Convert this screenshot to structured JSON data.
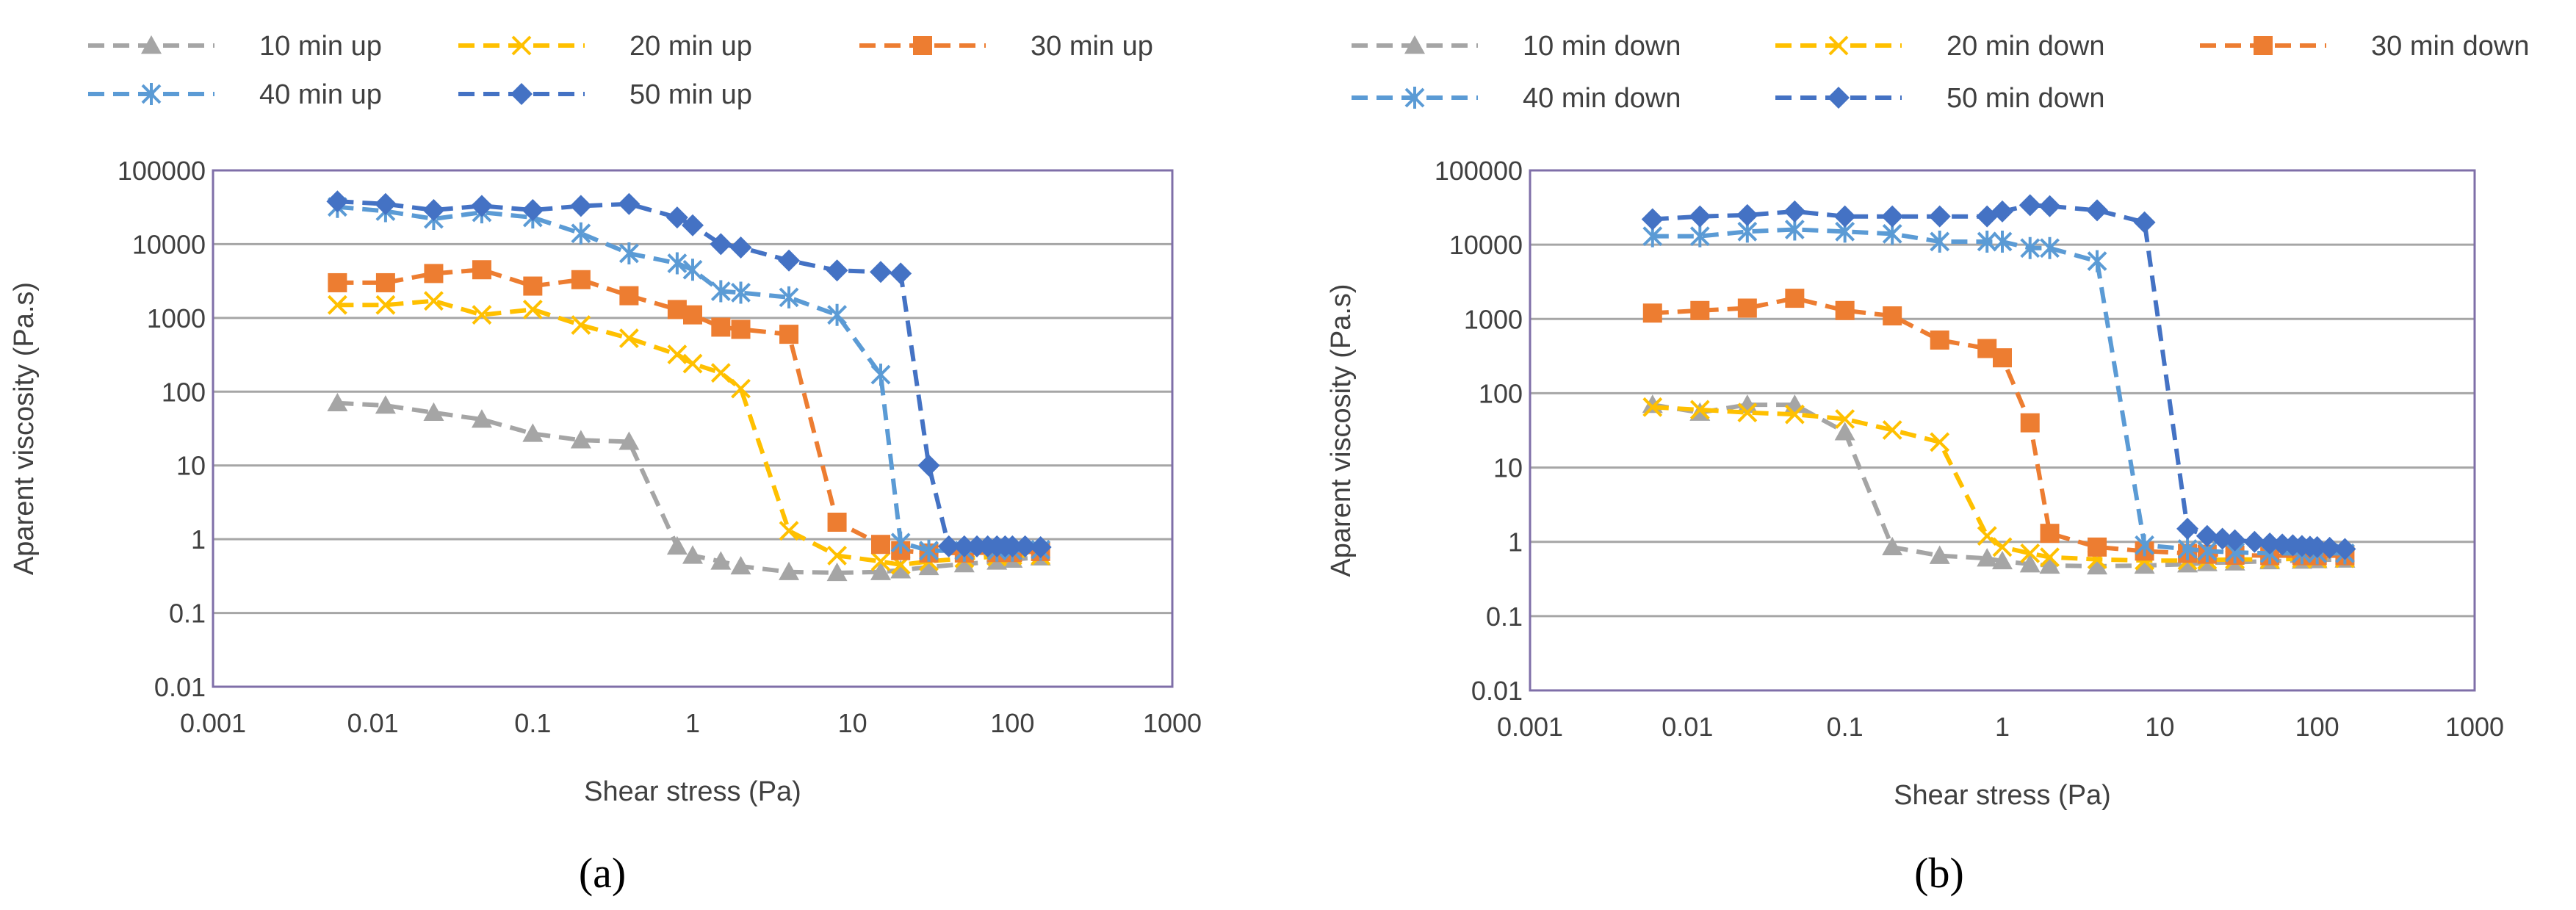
{
  "colors": {
    "gray": "#a5a5a5",
    "yellow": "#ffc000",
    "orange": "#ed7d31",
    "lightblue": "#5b9bd5",
    "blue": "#4472c4",
    "grid": "#a6a6a6",
    "frame": "#7f6fa8"
  },
  "chart_data": [
    {
      "type": "line",
      "panel_label": "(a)",
      "panel_letter": "a",
      "xlabel": "Shear stress (Pa)",
      "ylabel": "Aparent viscosity (Pa.s)",
      "xscale": "log",
      "yscale": "log",
      "xlim": [
        0.001,
        1000
      ],
      "ylim": [
        0.01,
        100000
      ],
      "xticks": [
        "0.001",
        "0.01",
        "0.1",
        "1",
        "10",
        "100",
        "1000"
      ],
      "yticks": [
        "0.01",
        "0.1",
        "1",
        "10",
        "100",
        "1000",
        "10000",
        "100000"
      ],
      "legend": "top",
      "series": [
        {
          "name": "10 min up",
          "color": "gray",
          "marker": "triangle",
          "x": [
            0.006,
            0.012,
            0.024,
            0.048,
            0.1,
            0.2,
            0.4,
            0.8,
            1.0,
            1.5,
            2.0,
            4.0,
            8.0,
            15,
            20,
            30,
            50,
            80,
            100,
            150
          ],
          "y": [
            70,
            65,
            52,
            42,
            27,
            22,
            21,
            0.8,
            0.6,
            0.5,
            0.43,
            0.36,
            0.35,
            0.36,
            0.38,
            0.42,
            0.46,
            0.5,
            0.53,
            0.57
          ]
        },
        {
          "name": "20 min up",
          "color": "yellow",
          "marker": "x",
          "x": [
            0.006,
            0.012,
            0.024,
            0.048,
            0.1,
            0.2,
            0.4,
            0.8,
            1.0,
            1.5,
            2.0,
            4.0,
            8.0,
            15,
            20,
            30,
            50,
            80,
            100,
            150
          ],
          "y": [
            1500,
            1500,
            1700,
            1100,
            1300,
            800,
            530,
            320,
            240,
            180,
            110,
            1.3,
            0.6,
            0.5,
            0.45,
            0.5,
            0.55,
            0.58,
            0.6,
            0.6
          ]
        },
        {
          "name": "30 min up",
          "color": "orange",
          "marker": "square",
          "x": [
            0.006,
            0.012,
            0.024,
            0.048,
            0.1,
            0.2,
            0.4,
            0.8,
            1.0,
            1.5,
            2.0,
            4.0,
            8.0,
            15,
            20,
            30,
            50,
            80,
            100,
            150
          ],
          "y": [
            3000,
            3000,
            4000,
            4500,
            2700,
            3300,
            2000,
            1300,
            1100,
            750,
            700,
            600,
            1.7,
            0.85,
            0.7,
            0.65,
            0.65,
            0.66,
            0.66,
            0.68
          ]
        },
        {
          "name": "40 min up",
          "color": "lightblue",
          "marker": "asterisk",
          "x": [
            0.006,
            0.012,
            0.024,
            0.048,
            0.1,
            0.2,
            0.4,
            0.8,
            1.0,
            1.5,
            2.0,
            4.0,
            8.0,
            15,
            20,
            30,
            50,
            80,
            100,
            150
          ],
          "y": [
            32000,
            28000,
            22000,
            27000,
            23000,
            14000,
            7500,
            5500,
            4500,
            2300,
            2200,
            1900,
            1100,
            170,
            0.9,
            0.7,
            0.7,
            0.7,
            0.7,
            0.72
          ]
        },
        {
          "name": "50 min up",
          "color": "blue",
          "marker": "diamond",
          "x": [
            0.006,
            0.012,
            0.024,
            0.048,
            0.1,
            0.2,
            0.4,
            0.8,
            1.0,
            1.5,
            2.0,
            4.0,
            8.0,
            15,
            20,
            30,
            40,
            50,
            60,
            70,
            80,
            90,
            100,
            120,
            150
          ],
          "y": [
            38000,
            35000,
            29000,
            33000,
            29000,
            33000,
            35000,
            23000,
            18000,
            10000,
            9000,
            6000,
            4400,
            4200,
            4000,
            10,
            0.8,
            0.8,
            0.8,
            0.8,
            0.8,
            0.8,
            0.8,
            0.8,
            0.78
          ]
        }
      ]
    },
    {
      "type": "line",
      "panel_label": "(b)",
      "panel_letter": "b",
      "xlabel": "Shear stress (Pa)",
      "ylabel": "Aparent viscosity (Pa.s)",
      "xscale": "log",
      "yscale": "log",
      "xlim": [
        0.001,
        1000
      ],
      "ylim": [
        0.01,
        100000
      ],
      "xticks": [
        "0.001",
        "0.01",
        "0.1",
        "1",
        "10",
        "100",
        "1000"
      ],
      "yticks": [
        "0.01",
        "0.1",
        "1",
        "10",
        "100",
        "1000",
        "10000",
        "100000"
      ],
      "legend": "top",
      "series": [
        {
          "name": "10 min down",
          "color": "gray",
          "marker": "triangle",
          "x": [
            0.006,
            0.012,
            0.024,
            0.048,
            0.1,
            0.2,
            0.4,
            0.8,
            1.0,
            1.5,
            2.0,
            4.0,
            8.0,
            15,
            20,
            30,
            50,
            80,
            100,
            150
          ],
          "y": [
            70,
            55,
            70,
            70,
            30,
            0.85,
            0.65,
            0.6,
            0.55,
            0.5,
            0.48,
            0.47,
            0.48,
            0.5,
            0.52,
            0.53,
            0.55,
            0.56,
            0.57,
            0.58
          ]
        },
        {
          "name": "20 min down",
          "color": "yellow",
          "marker": "x",
          "x": [
            0.006,
            0.012,
            0.024,
            0.048,
            0.1,
            0.2,
            0.4,
            0.8,
            1.0,
            1.5,
            2.0,
            4.0,
            8.0,
            15,
            20,
            30,
            50,
            80,
            100,
            150
          ],
          "y": [
            65,
            60,
            55,
            52,
            45,
            32,
            22,
            1.2,
            0.85,
            0.7,
            0.62,
            0.58,
            0.56,
            0.56,
            0.57,
            0.58,
            0.58,
            0.59,
            0.59,
            0.6
          ]
        },
        {
          "name": "30 min down",
          "color": "orange",
          "marker": "square",
          "x": [
            0.006,
            0.012,
            0.024,
            0.048,
            0.1,
            0.2,
            0.4,
            0.8,
            1.0,
            1.5,
            2.0,
            4.0,
            8.0,
            15,
            20,
            30,
            50,
            80,
            100,
            150
          ],
          "y": [
            1200,
            1300,
            1400,
            1900,
            1300,
            1100,
            520,
            400,
            300,
            40,
            1.3,
            0.85,
            0.75,
            0.7,
            0.68,
            0.66,
            0.65,
            0.65,
            0.65,
            0.65
          ]
        },
        {
          "name": "40 min down",
          "color": "lightblue",
          "marker": "asterisk",
          "x": [
            0.006,
            0.012,
            0.024,
            0.048,
            0.1,
            0.2,
            0.4,
            0.8,
            1.0,
            1.5,
            2.0,
            4.0,
            8.0,
            15,
            20,
            30,
            50,
            80,
            100,
            150
          ],
          "y": [
            13000,
            13000,
            15000,
            16000,
            15000,
            14000,
            11000,
            11000,
            11000,
            9000,
            9000,
            6000,
            0.9,
            0.8,
            0.75,
            0.72,
            0.7,
            0.7,
            0.7,
            0.7
          ]
        },
        {
          "name": "50 min down",
          "color": "blue",
          "marker": "diamond",
          "x": [
            0.006,
            0.012,
            0.024,
            0.048,
            0.1,
            0.2,
            0.4,
            0.8,
            1.0,
            1.5,
            2.0,
            4.0,
            8.0,
            15,
            20,
            25,
            30,
            40,
            50,
            60,
            70,
            80,
            90,
            100,
            120,
            150
          ],
          "y": [
            22000,
            24000,
            25000,
            28000,
            24000,
            24000,
            24000,
            24000,
            28000,
            34000,
            33000,
            29000,
            20000,
            1.5,
            1.2,
            1.1,
            1.05,
            1.0,
            0.95,
            0.92,
            0.9,
            0.88,
            0.86,
            0.85,
            0.83,
            0.8
          ]
        }
      ]
    }
  ]
}
